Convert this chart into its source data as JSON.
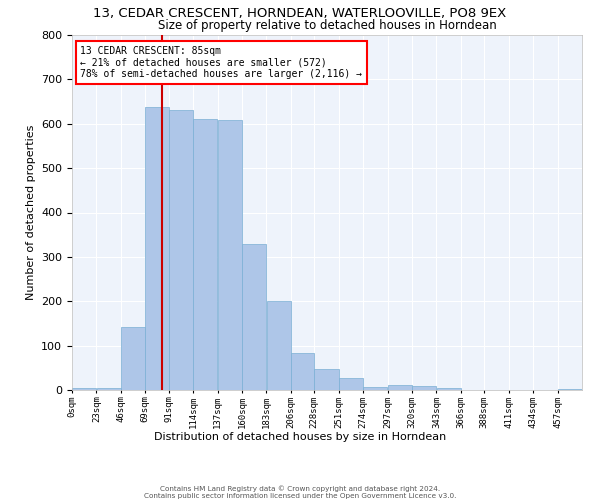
{
  "title": "13, CEDAR CRESCENT, HORNDEAN, WATERLOOVILLE, PO8 9EX",
  "subtitle": "Size of property relative to detached houses in Horndean",
  "xlabel": "Distribution of detached houses by size in Horndean",
  "ylabel": "Number of detached properties",
  "bar_color": "#aec6e8",
  "bar_edge_color": "#7aafd4",
  "background_color": "#eef3fb",
  "grid_color": "#ffffff",
  "annotation_line1": "13 CEDAR CRESCENT: 85sqm",
  "annotation_line2": "← 21% of detached houses are smaller (572)",
  "annotation_line3": "78% of semi-detached houses are larger (2,116) →",
  "vline_x": 85,
  "vline_color": "#cc0000",
  "categories": [
    "0sqm",
    "23sqm",
    "46sqm",
    "69sqm",
    "91sqm",
    "114sqm",
    "137sqm",
    "160sqm",
    "183sqm",
    "206sqm",
    "228sqm",
    "251sqm",
    "274sqm",
    "297sqm",
    "320sqm",
    "343sqm",
    "366sqm",
    "388sqm",
    "411sqm",
    "434sqm",
    "457sqm"
  ],
  "bin_edges": [
    0,
    23,
    46,
    69,
    91,
    114,
    137,
    160,
    183,
    206,
    228,
    251,
    274,
    297,
    320,
    343,
    366,
    388,
    411,
    434,
    457,
    480
  ],
  "values": [
    5,
    5,
    143,
    637,
    630,
    611,
    608,
    330,
    200,
    83,
    48,
    28,
    7,
    11,
    10,
    5,
    0,
    0,
    0,
    0,
    2
  ],
  "ylim": [
    0,
    800
  ],
  "yticks": [
    0,
    100,
    200,
    300,
    400,
    500,
    600,
    700,
    800
  ],
  "footer_line1": "Contains HM Land Registry data © Crown copyright and database right 2024.",
  "footer_line2": "Contains public sector information licensed under the Open Government Licence v3.0."
}
